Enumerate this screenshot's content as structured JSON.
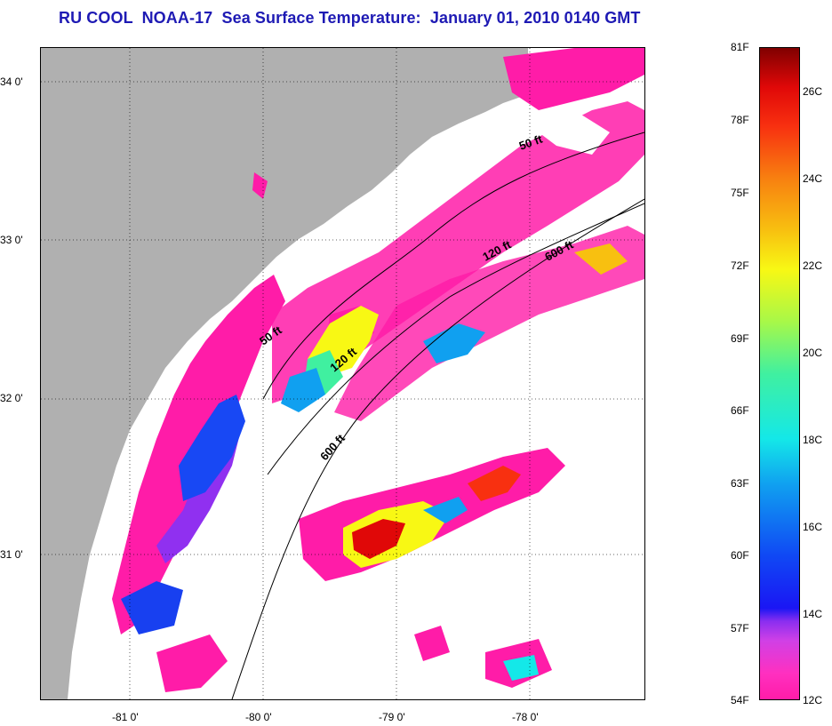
{
  "title": "RU COOL  NOAA-17  Sea Surface Temperature:  January 01, 2010 0140 GMT",
  "latitude_labels": [
    "34 0'",
    "33 0'",
    "32 0'",
    "31 0'"
  ],
  "longitude_labels": [
    "-81 0'",
    "-80 0'",
    "-79 0'",
    "-78 0'"
  ],
  "isobath_labels": [
    "50 ft",
    "120 ft",
    "600 ft"
  ],
  "colorbar": {
    "fahrenheit": [
      "81F",
      "78F",
      "75F",
      "72F",
      "69F",
      "66F",
      "63F",
      "60F",
      "57F",
      "54F"
    ],
    "celsius": [
      "26C",
      "24C",
      "22C",
      "20C",
      "18C",
      "16C",
      "14C",
      "12C"
    ]
  },
  "colors": {
    "land": "#b0b0b0",
    "title": "#1e1ab4",
    "cold": "#ff1ca8",
    "warm": "#e00808"
  }
}
